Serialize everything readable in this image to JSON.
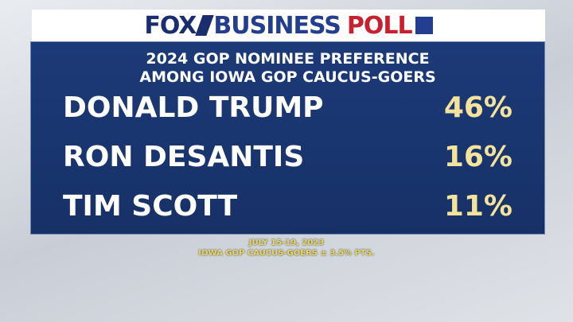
{
  "header": {
    "brand": "FOX",
    "network": "BUSINESS",
    "label": "POLL"
  },
  "title": [
    "2024 GOP NOMINEE PREFERENCE",
    "AMONG IOWA GOP CAUCUS-GOERS"
  ],
  "rows": [
    {
      "name": "DONALD TRUMP",
      "value": "46%"
    },
    {
      "name": "RON DESANTIS",
      "value": "16%"
    },
    {
      "name": "TIM SCOTT",
      "value": "11%"
    }
  ],
  "footer": [
    "JULY 15-19, 2023",
    "IOWA GOP CAUCUS-GOERS ± 3.5% PTS."
  ]
}
